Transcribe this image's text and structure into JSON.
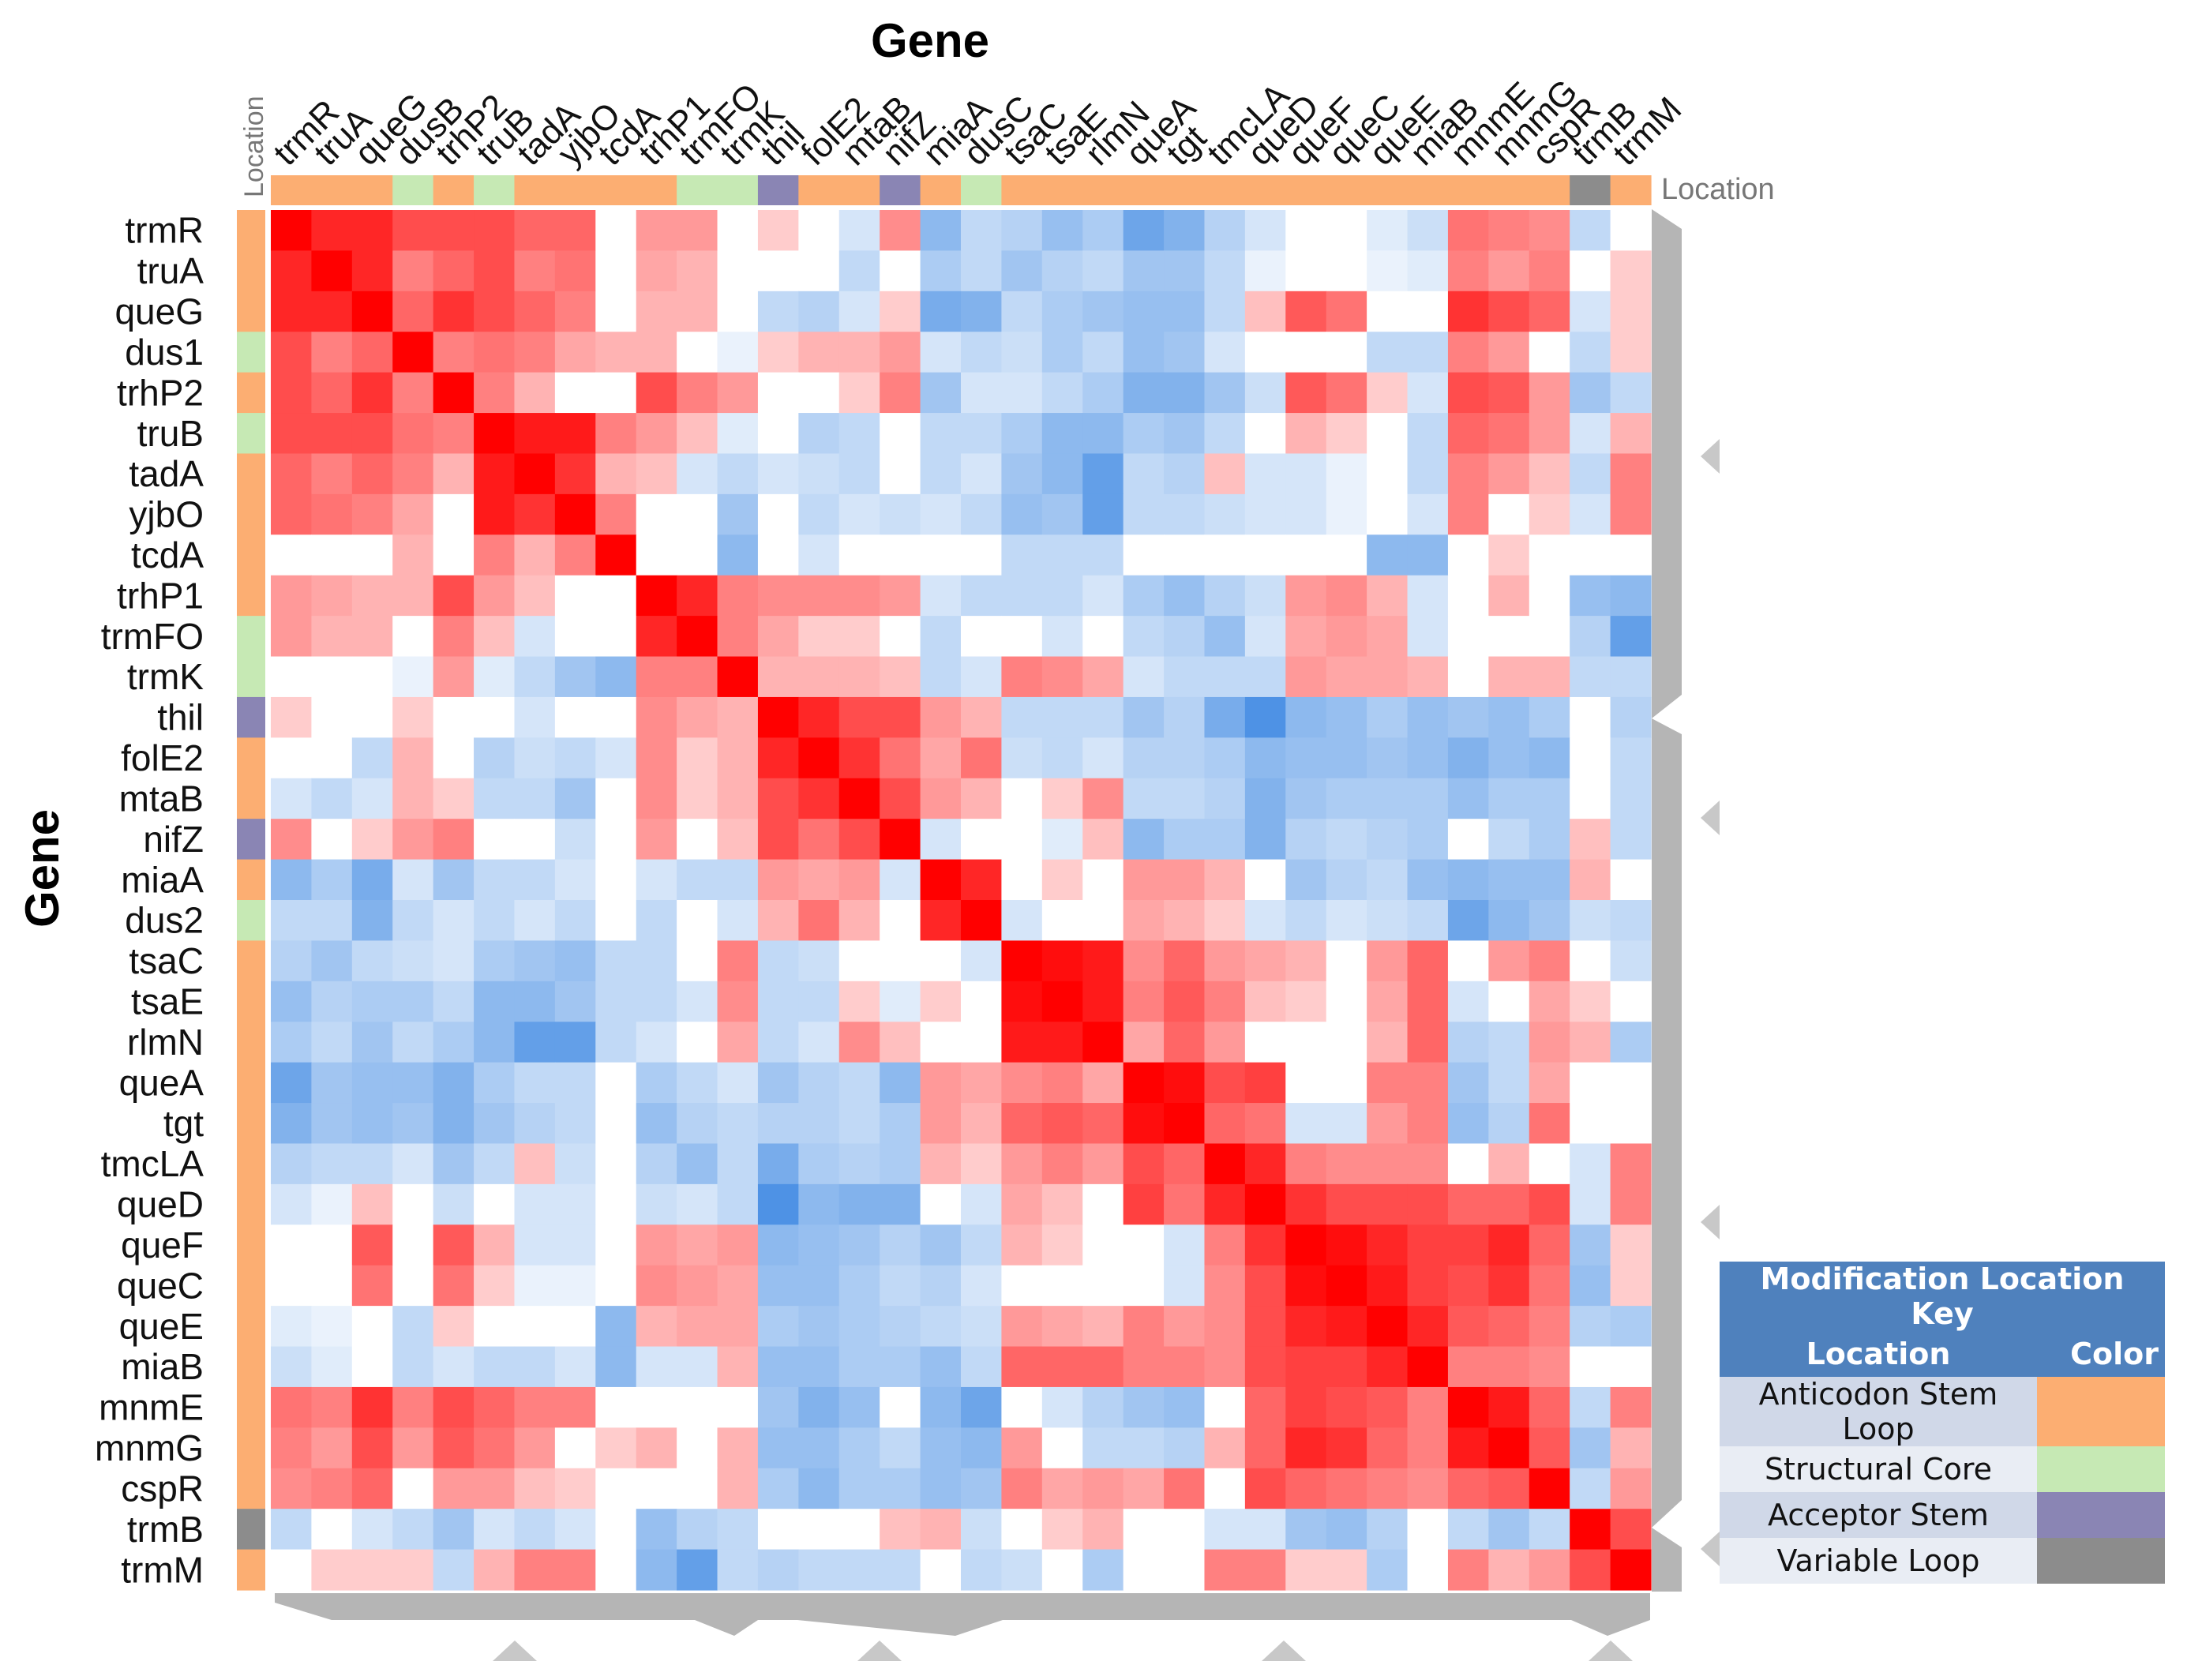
{
  "chart_data": {
    "type": "heatmap",
    "title": "Gene",
    "xlabel": "Gene",
    "ylabel": "Gene",
    "location_label": "Location",
    "x_genes": [
      "trmR",
      "truA",
      "queG",
      "dusB",
      "trhP2",
      "truB",
      "tadA",
      "yjbO",
      "tcdA",
      "trhP1",
      "trmFO",
      "trmK",
      "thil",
      "folE2",
      "mtaB",
      "nifZ",
      "miaA",
      "dusC",
      "tsaC",
      "tsaE",
      "rlmN",
      "queA",
      "tgt",
      "tmcLA",
      "queD",
      "queF",
      "queC",
      "queE",
      "miaB",
      "mnmE",
      "mnmG",
      "cspR",
      "trmB",
      "trmM"
    ],
    "y_genes": [
      "trmR",
      "truA",
      "queG",
      "dus1",
      "trhP2",
      "truB",
      "tadA",
      "yjbO",
      "tcdA",
      "trhP1",
      "trmFO",
      "trmK",
      "thil",
      "folE2",
      "mtaB",
      "nifZ",
      "miaA",
      "dus2",
      "tsaC",
      "tsaE",
      "rlmN",
      "queA",
      "tgt",
      "tmcLA",
      "queD",
      "queF",
      "queC",
      "queE",
      "miaB",
      "mnmE",
      "mnmG",
      "cspR",
      "trmB",
      "trmM"
    ],
    "locations": [
      "A",
      "A",
      "A",
      "S",
      "A",
      "S",
      "A",
      "A",
      "A",
      "A",
      "S",
      "S",
      "C",
      "A",
      "A",
      "C",
      "A",
      "S",
      "A",
      "A",
      "A",
      "A",
      "A",
      "A",
      "A",
      "A",
      "A",
      "A",
      "A",
      "A",
      "A",
      "A",
      "V",
      "A"
    ],
    "color_scale": {
      "negative": "#2f7fe0",
      "zero": "#ffffff",
      "positive": "#ff0000",
      "min": -1,
      "max": 1
    },
    "values": [
      [
        1.0,
        0.85,
        0.85,
        0.7,
        0.7,
        0.7,
        0.6,
        0.6,
        0,
        0.4,
        0.4,
        0,
        0.2,
        0,
        -0.2,
        0.45,
        -0.55,
        -0.3,
        -0.35,
        -0.5,
        -0.4,
        -0.7,
        -0.6,
        -0.35,
        -0.2,
        0,
        0,
        -0.15,
        -0.25,
        0.55,
        0.5,
        0.45,
        -0.3,
        0
      ],
      [
        0.85,
        1.0,
        0.85,
        0.5,
        0.6,
        0.7,
        0.5,
        0.55,
        0,
        0.35,
        0.3,
        0,
        0,
        0,
        -0.3,
        0,
        -0.4,
        -0.3,
        -0.45,
        -0.35,
        -0.3,
        -0.45,
        -0.45,
        -0.3,
        -0.1,
        0,
        0,
        -0.1,
        -0.15,
        0.5,
        0.4,
        0.5,
        0,
        0.2
      ],
      [
        0.85,
        0.85,
        1.0,
        0.6,
        0.8,
        0.7,
        0.6,
        0.5,
        0,
        0.3,
        0.3,
        0,
        -0.3,
        -0.35,
        -0.2,
        0.2,
        -0.65,
        -0.6,
        -0.3,
        -0.4,
        -0.45,
        -0.5,
        -0.5,
        -0.3,
        0.25,
        0.65,
        0.55,
        0,
        0,
        0.8,
        0.7,
        0.6,
        -0.2,
        0.2
      ],
      [
        0.7,
        0.5,
        0.6,
        1.0,
        0.5,
        0.55,
        0.5,
        0.35,
        0.3,
        0.3,
        0,
        -0.1,
        0.2,
        0.3,
        0.3,
        0.4,
        -0.2,
        -0.3,
        -0.25,
        -0.4,
        -0.3,
        -0.5,
        -0.45,
        -0.2,
        0,
        0,
        0,
        -0.3,
        -0.3,
        0.5,
        0.4,
        0,
        -0.3,
        0.2
      ],
      [
        0.7,
        0.6,
        0.8,
        0.5,
        1.0,
        0.5,
        0.3,
        0,
        0,
        0.7,
        0.5,
        0.4,
        0,
        0,
        0.2,
        0.5,
        -0.45,
        -0.2,
        -0.2,
        -0.3,
        -0.4,
        -0.6,
        -0.6,
        -0.45,
        -0.25,
        0.65,
        0.55,
        0.2,
        -0.2,
        0.7,
        0.65,
        0.4,
        -0.45,
        -0.3
      ],
      [
        0.7,
        0.7,
        0.7,
        0.55,
        0.5,
        1.0,
        0.9,
        0.9,
        0.5,
        0.4,
        0.25,
        -0.15,
        0,
        -0.35,
        -0.3,
        0,
        -0.3,
        -0.3,
        -0.4,
        -0.55,
        -0.55,
        -0.4,
        -0.45,
        -0.3,
        0,
        0.3,
        0.2,
        0,
        -0.3,
        0.6,
        0.55,
        0.4,
        -0.2,
        0.3
      ],
      [
        0.6,
        0.5,
        0.6,
        0.5,
        0.3,
        0.9,
        1.0,
        0.8,
        0.3,
        0.25,
        -0.2,
        -0.3,
        -0.2,
        -0.25,
        -0.3,
        0,
        -0.3,
        -0.2,
        -0.45,
        -0.55,
        -0.75,
        -0.3,
        -0.35,
        0.25,
        -0.2,
        -0.2,
        -0.1,
        0,
        -0.3,
        0.5,
        0.4,
        0.25,
        -0.3,
        0.5
      ],
      [
        0.6,
        0.55,
        0.5,
        0.35,
        0,
        0.9,
        0.8,
        1.0,
        0.5,
        0,
        0,
        -0.45,
        0,
        -0.3,
        -0.2,
        -0.25,
        -0.2,
        -0.3,
        -0.5,
        -0.45,
        -0.75,
        -0.3,
        -0.3,
        -0.25,
        -0.2,
        -0.2,
        -0.1,
        0,
        -0.2,
        0.5,
        0,
        0.2,
        -0.2,
        0.5
      ],
      [
        0,
        0,
        0,
        0.3,
        0,
        0.5,
        0.3,
        0.5,
        1.0,
        0,
        0,
        -0.55,
        0,
        -0.2,
        0,
        0,
        0,
        0,
        -0.3,
        -0.3,
        -0.3,
        0,
        0,
        0,
        0,
        0,
        0,
        -0.55,
        -0.55,
        0,
        0.2,
        0,
        0,
        0
      ],
      [
        0.4,
        0.35,
        0.3,
        0.3,
        0.7,
        0.4,
        0.25,
        0,
        0,
        1.0,
        0.85,
        0.5,
        0.45,
        0.45,
        0.45,
        0.4,
        -0.2,
        -0.3,
        -0.3,
        -0.3,
        -0.2,
        -0.4,
        -0.5,
        -0.35,
        -0.25,
        0.4,
        0.45,
        0.3,
        -0.2,
        0,
        0.3,
        0,
        -0.5,
        -0.55
      ],
      [
        0.4,
        0.3,
        0.3,
        0,
        0.5,
        0.25,
        -0.2,
        0,
        0,
        0.85,
        1.0,
        0.5,
        0.35,
        0.2,
        0.2,
        0,
        -0.3,
        0,
        0,
        -0.2,
        0,
        -0.3,
        -0.35,
        -0.5,
        -0.2,
        0.35,
        0.4,
        0.35,
        -0.2,
        0,
        0,
        0,
        -0.35,
        -0.75
      ],
      [
        0,
        0,
        0,
        -0.1,
        0.4,
        -0.15,
        -0.3,
        -0.45,
        -0.55,
        0.5,
        0.5,
        1.0,
        0.3,
        0.3,
        0.3,
        0.25,
        -0.3,
        -0.2,
        0.5,
        0.45,
        0.35,
        -0.2,
        -0.3,
        -0.3,
        -0.3,
        0.4,
        0.35,
        0.35,
        0.3,
        0,
        0.3,
        0.3,
        -0.3,
        -0.3
      ],
      [
        0.2,
        0,
        0,
        0.2,
        0,
        0,
        -0.2,
        0,
        0,
        0.45,
        0.35,
        0.3,
        1.0,
        0.85,
        0.7,
        0.7,
        0.4,
        0.3,
        -0.3,
        -0.3,
        -0.3,
        -0.45,
        -0.35,
        -0.65,
        -0.85,
        -0.55,
        -0.5,
        -0.4,
        -0.5,
        -0.45,
        -0.5,
        -0.4,
        0,
        -0.35
      ],
      [
        0,
        0,
        -0.3,
        0.3,
        0,
        -0.35,
        -0.25,
        -0.3,
        -0.2,
        0.45,
        0.2,
        0.3,
        0.85,
        1.0,
        0.8,
        0.55,
        0.35,
        0.55,
        -0.25,
        -0.3,
        -0.2,
        -0.35,
        -0.35,
        -0.4,
        -0.55,
        -0.5,
        -0.5,
        -0.45,
        -0.5,
        -0.6,
        -0.5,
        -0.55,
        0,
        -0.3
      ],
      [
        -0.2,
        -0.3,
        -0.2,
        0.3,
        0.2,
        -0.3,
        -0.3,
        -0.45,
        0,
        0.45,
        0.2,
        0.3,
        0.7,
        0.8,
        1.0,
        0.7,
        0.4,
        0.3,
        0,
        0.2,
        0.45,
        -0.3,
        -0.3,
        -0.35,
        -0.6,
        -0.45,
        -0.4,
        -0.4,
        -0.4,
        -0.5,
        -0.4,
        -0.4,
        0,
        -0.3
      ],
      [
        0.45,
        0,
        0.2,
        0.4,
        0.5,
        0,
        0,
        -0.25,
        0,
        0.4,
        0,
        0.25,
        0.7,
        0.55,
        0.7,
        1.0,
        -0.2,
        0,
        0,
        -0.15,
        0.25,
        -0.55,
        -0.4,
        -0.4,
        -0.6,
        -0.35,
        -0.3,
        -0.35,
        -0.4,
        0,
        -0.3,
        -0.4,
        0.25,
        -0.3
      ],
      [
        -0.55,
        -0.4,
        -0.65,
        -0.2,
        -0.45,
        -0.3,
        -0.3,
        -0.2,
        0,
        -0.2,
        -0.3,
        -0.3,
        0.4,
        0.35,
        0.4,
        -0.2,
        1.0,
        0.85,
        0,
        0.2,
        0,
        0.4,
        0.4,
        0.3,
        0,
        -0.45,
        -0.35,
        -0.3,
        -0.5,
        -0.55,
        -0.5,
        -0.5,
        0.3,
        0
      ],
      [
        -0.3,
        -0.3,
        -0.6,
        -0.3,
        -0.2,
        -0.3,
        -0.2,
        -0.3,
        0,
        -0.3,
        0,
        -0.2,
        0.3,
        0.55,
        0.3,
        0,
        0.85,
        1.0,
        -0.2,
        0,
        0,
        0.35,
        0.3,
        0.2,
        -0.2,
        -0.3,
        -0.2,
        -0.25,
        -0.3,
        -0.7,
        -0.55,
        -0.45,
        -0.25,
        -0.3
      ],
      [
        -0.35,
        -0.45,
        -0.3,
        -0.25,
        -0.2,
        -0.4,
        -0.45,
        -0.5,
        -0.3,
        -0.3,
        0,
        0.5,
        -0.3,
        -0.25,
        0,
        0,
        0,
        -0.2,
        1.0,
        0.95,
        0.9,
        0.45,
        0.6,
        0.4,
        0.35,
        0.3,
        0,
        0.4,
        0.6,
        0,
        0.4,
        0.5,
        0,
        -0.25
      ],
      [
        -0.5,
        -0.35,
        -0.4,
        -0.4,
        -0.3,
        -0.55,
        -0.55,
        -0.45,
        -0.3,
        -0.3,
        -0.2,
        0.45,
        -0.3,
        -0.3,
        0.2,
        -0.15,
        0.2,
        0,
        0.95,
        1.0,
        0.9,
        0.5,
        0.65,
        0.5,
        0.25,
        0.2,
        0,
        0.35,
        0.6,
        -0.2,
        0,
        0.35,
        0.2,
        0
      ],
      [
        -0.4,
        -0.3,
        -0.45,
        -0.3,
        -0.4,
        -0.55,
        -0.75,
        -0.75,
        -0.3,
        -0.2,
        0,
        0.35,
        -0.3,
        -0.2,
        0.45,
        0.25,
        0,
        0,
        0.9,
        0.9,
        1.0,
        0.35,
        0.6,
        0.4,
        0,
        0,
        0,
        0.3,
        0.6,
        -0.35,
        -0.3,
        0.4,
        0.3,
        -0.4
      ],
      [
        -0.7,
        -0.45,
        -0.5,
        -0.5,
        -0.6,
        -0.4,
        -0.3,
        -0.3,
        0,
        -0.4,
        -0.3,
        -0.2,
        -0.45,
        -0.35,
        -0.3,
        -0.55,
        0.4,
        0.35,
        0.45,
        0.5,
        0.35,
        1.0,
        0.95,
        0.7,
        0.75,
        0,
        0,
        0.5,
        0.5,
        -0.45,
        -0.3,
        0.35,
        0,
        0
      ],
      [
        -0.6,
        -0.45,
        -0.5,
        -0.45,
        -0.6,
        -0.45,
        -0.35,
        -0.3,
        0,
        -0.5,
        -0.35,
        -0.3,
        -0.35,
        -0.35,
        -0.3,
        -0.4,
        0.4,
        0.3,
        0.6,
        0.65,
        0.6,
        0.95,
        1.0,
        0.6,
        0.55,
        -0.2,
        -0.2,
        0.4,
        0.5,
        -0.5,
        -0.35,
        0.55,
        0,
        0
      ],
      [
        -0.35,
        -0.3,
        -0.3,
        -0.2,
        -0.45,
        -0.3,
        0.25,
        -0.25,
        0,
        -0.35,
        -0.5,
        -0.3,
        -0.65,
        -0.4,
        -0.35,
        -0.4,
        0.3,
        0.2,
        0.4,
        0.5,
        0.4,
        0.7,
        0.6,
        1.0,
        0.85,
        0.5,
        0.45,
        0.45,
        0.45,
        0,
        0.3,
        0,
        -0.2,
        0.5
      ],
      [
        -0.2,
        -0.1,
        0.25,
        0,
        -0.25,
        0,
        -0.2,
        -0.2,
        0,
        -0.25,
        -0.2,
        -0.3,
        -0.85,
        -0.55,
        -0.6,
        -0.6,
        0,
        -0.2,
        0.35,
        0.25,
        0,
        0.75,
        0.55,
        0.85,
        1.0,
        0.8,
        0.7,
        0.7,
        0.7,
        0.6,
        0.6,
        0.7,
        -0.2,
        0.5
      ],
      [
        0,
        0,
        0.65,
        0,
        0.65,
        0.3,
        -0.2,
        -0.2,
        0,
        0.4,
        0.35,
        0.4,
        -0.55,
        -0.5,
        -0.45,
        -0.35,
        -0.45,
        -0.3,
        0.3,
        0.2,
        0,
        0,
        -0.2,
        0.5,
        0.8,
        1.0,
        0.95,
        0.85,
        0.75,
        0.75,
        0.85,
        0.6,
        -0.45,
        0.2
      ],
      [
        0,
        0,
        0.55,
        0,
        0.55,
        0.2,
        -0.1,
        -0.1,
        0,
        0.45,
        0.4,
        0.35,
        -0.5,
        -0.5,
        -0.4,
        -0.3,
        -0.35,
        -0.2,
        0,
        0,
        0,
        0,
        -0.2,
        0.45,
        0.7,
        0.95,
        1.0,
        0.9,
        0.75,
        0.7,
        0.8,
        0.55,
        -0.5,
        0.2
      ],
      [
        -0.15,
        -0.1,
        0,
        -0.3,
        0.2,
        0,
        0,
        0,
        -0.55,
        0.3,
        0.35,
        0.35,
        -0.4,
        -0.45,
        -0.4,
        -0.35,
        -0.3,
        -0.25,
        0.4,
        0.35,
        0.3,
        0.5,
        0.4,
        0.45,
        0.7,
        0.85,
        0.9,
        1.0,
        0.85,
        0.65,
        0.6,
        0.5,
        -0.35,
        -0.4
      ],
      [
        -0.25,
        -0.15,
        0,
        -0.3,
        -0.2,
        -0.3,
        -0.3,
        -0.2,
        -0.55,
        -0.2,
        -0.2,
        0.3,
        -0.5,
        -0.5,
        -0.4,
        -0.4,
        -0.5,
        -0.3,
        0.6,
        0.6,
        0.6,
        0.5,
        0.5,
        0.45,
        0.7,
        0.75,
        0.75,
        0.85,
        1.0,
        0.5,
        0.5,
        0.45,
        0,
        0
      ],
      [
        0.55,
        0.5,
        0.8,
        0.5,
        0.7,
        0.6,
        0.5,
        0.5,
        0,
        0,
        0,
        0,
        -0.45,
        -0.6,
        -0.5,
        0,
        -0.55,
        -0.7,
        0,
        -0.2,
        -0.35,
        -0.45,
        -0.5,
        0,
        0.6,
        0.75,
        0.7,
        0.65,
        0.5,
        1.0,
        0.9,
        0.6,
        -0.3,
        0.5
      ],
      [
        0.5,
        0.4,
        0.7,
        0.4,
        0.65,
        0.55,
        0.4,
        0,
        0.2,
        0.3,
        0,
        0.3,
        -0.5,
        -0.5,
        -0.4,
        -0.3,
        -0.5,
        -0.55,
        0.4,
        0,
        -0.3,
        -0.3,
        -0.35,
        0.3,
        0.6,
        0.85,
        0.8,
        0.6,
        0.5,
        0.9,
        1.0,
        0.65,
        -0.45,
        0.3
      ],
      [
        0.45,
        0.5,
        0.6,
        0,
        0.4,
        0.4,
        0.25,
        0.2,
        0,
        0,
        0,
        0.3,
        -0.4,
        -0.55,
        -0.4,
        -0.4,
        -0.5,
        -0.45,
        0.5,
        0.35,
        0.4,
        0.35,
        0.55,
        0,
        0.7,
        0.6,
        0.55,
        0.5,
        0.45,
        0.6,
        0.65,
        1.0,
        -0.3,
        0.4
      ],
      [
        -0.3,
        0,
        -0.2,
        -0.3,
        -0.45,
        -0.2,
        -0.3,
        -0.2,
        0,
        -0.5,
        -0.35,
        -0.3,
        0,
        0,
        0,
        0.25,
        0.3,
        -0.25,
        0,
        0.2,
        0.3,
        0,
        0,
        -0.2,
        -0.2,
        -0.45,
        -0.5,
        -0.35,
        0,
        -0.3,
        -0.45,
        -0.3,
        1.0,
        0.7
      ],
      [
        0,
        0.2,
        0.2,
        0.2,
        -0.3,
        0.3,
        0.5,
        0.5,
        0,
        -0.55,
        -0.75,
        -0.3,
        -0.35,
        -0.3,
        -0.3,
        -0.3,
        0,
        -0.3,
        -0.25,
        0,
        -0.4,
        0,
        0,
        0.5,
        0.5,
        0.2,
        0.2,
        -0.4,
        0,
        0.5,
        0.3,
        0.4,
        0.7,
        1.0
      ]
    ]
  },
  "legend": {
    "title": "Modification Location Key",
    "col_location": "Location",
    "col_color": "Color",
    "items": [
      {
        "code": "A",
        "label": "Anticodon Stem Loop",
        "color": "#fcae72"
      },
      {
        "code": "S",
        "label": "Structural Core",
        "color": "#c6e9b4"
      },
      {
        "code": "C",
        "label": "Acceptor Stem",
        "color": "#8a85b4"
      },
      {
        "code": "V",
        "label": "Variable Loop",
        "color": "#8c8c8c"
      }
    ]
  }
}
